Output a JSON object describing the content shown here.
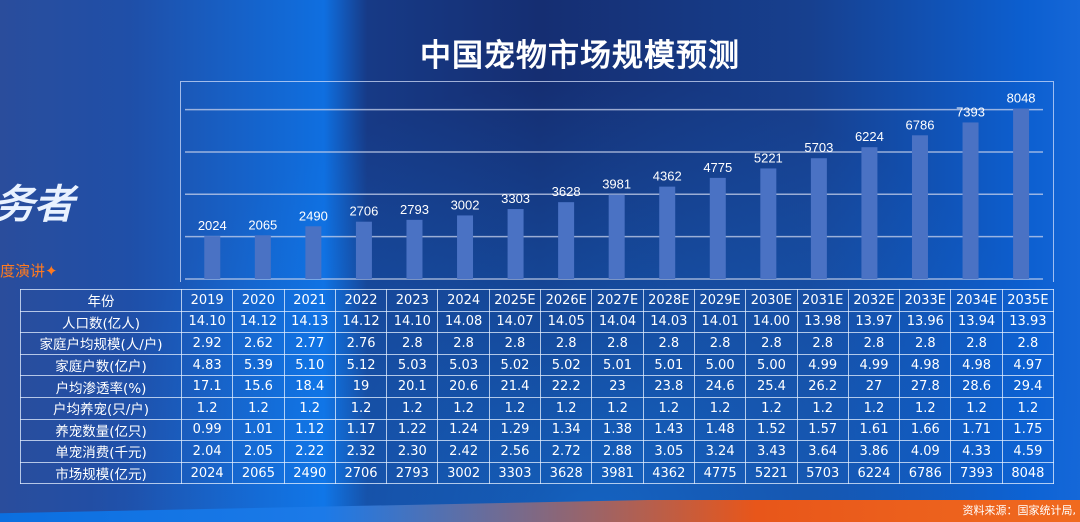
{
  "title": "中国宠物市场规模预测",
  "brand": {
    "text": "务者",
    "sub": "度演讲✦"
  },
  "source": "资料来源：国家统计局,",
  "chart_data": {
    "type": "bar",
    "title": "中国宠物市场规模预测",
    "categories": [
      "2019",
      "2020",
      "2021",
      "2022",
      "2023",
      "2024",
      "2025E",
      "2026E",
      "2027E",
      "2028E",
      "2029E",
      "2030E",
      "2031E",
      "2032E",
      "2033E",
      "2034E",
      "2035E"
    ],
    "values": [
      2024,
      2065,
      2490,
      2706,
      2793,
      3002,
      3303,
      3628,
      3981,
      4362,
      4775,
      5221,
      5703,
      6224,
      6786,
      7393,
      8048
    ],
    "ylim": [
      0,
      9350
    ],
    "grid": true,
    "gridlines": [
      2000,
      4000,
      6000,
      8000
    ],
    "bar_color": "#4a72c4",
    "xlabel": "",
    "ylabel": ""
  },
  "table": {
    "header": "年份",
    "rows": [
      {
        "label": "人口数(亿人)",
        "values": [
          "14.10",
          "14.12",
          "14.13",
          "14.12",
          "14.10",
          "14.08",
          "14.07",
          "14.05",
          "14.04",
          "14.03",
          "14.01",
          "14.00",
          "13.98",
          "13.97",
          "13.96",
          "13.94",
          "13.93"
        ]
      },
      {
        "label": "家庭户均规模(人/户)",
        "values": [
          "2.92",
          "2.62",
          "2.77",
          "2.76",
          "2.8",
          "2.8",
          "2.8",
          "2.8",
          "2.8",
          "2.8",
          "2.8",
          "2.8",
          "2.8",
          "2.8",
          "2.8",
          "2.8",
          "2.8"
        ]
      },
      {
        "label": "家庭户数(亿户)",
        "values": [
          "4.83",
          "5.39",
          "5.10",
          "5.12",
          "5.03",
          "5.03",
          "5.02",
          "5.02",
          "5.01",
          "5.01",
          "5.00",
          "5.00",
          "4.99",
          "4.99",
          "4.98",
          "4.98",
          "4.97"
        ]
      },
      {
        "label": "户均渗透率(%)",
        "values": [
          "17.1",
          "15.6",
          "18.4",
          "19",
          "20.1",
          "20.6",
          "21.4",
          "22.2",
          "23",
          "23.8",
          "24.6",
          "25.4",
          "26.2",
          "27",
          "27.8",
          "28.6",
          "29.4"
        ]
      },
      {
        "label": "户均养宠(只/户)",
        "values": [
          "1.2",
          "1.2",
          "1.2",
          "1.2",
          "1.2",
          "1.2",
          "1.2",
          "1.2",
          "1.2",
          "1.2",
          "1.2",
          "1.2",
          "1.2",
          "1.2",
          "1.2",
          "1.2",
          "1.2"
        ]
      },
      {
        "label": "养宠数量(亿只)",
        "values": [
          "0.99",
          "1.01",
          "1.12",
          "1.17",
          "1.22",
          "1.24",
          "1.29",
          "1.34",
          "1.38",
          "1.43",
          "1.48",
          "1.52",
          "1.57",
          "1.61",
          "1.66",
          "1.71",
          "1.75"
        ]
      },
      {
        "label": "单宠消费(千元)",
        "values": [
          "2.04",
          "2.05",
          "2.22",
          "2.32",
          "2.30",
          "2.42",
          "2.56",
          "2.72",
          "2.88",
          "3.05",
          "3.24",
          "3.43",
          "3.64",
          "3.86",
          "4.09",
          "4.33",
          "4.59"
        ]
      },
      {
        "label": "市场规模(亿元)",
        "values": [
          "2024",
          "2065",
          "2490",
          "2706",
          "2793",
          "3002",
          "3303",
          "3628",
          "3981",
          "4362",
          "4775",
          "5221",
          "5703",
          "6224",
          "6786",
          "7393",
          "8048"
        ]
      }
    ]
  }
}
